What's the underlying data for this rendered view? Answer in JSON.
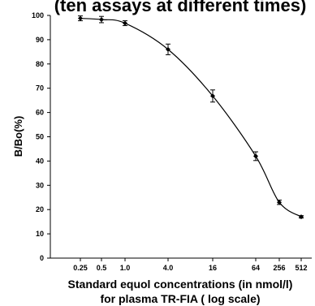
{
  "chart_data": {
    "type": "line",
    "title": "(ten assays at different times)",
    "xlabel_line1": "Standard equol concentrations  (in nmol/l)",
    "xlabel_line2": "for plasma TR-FIA ( log scale)",
    "ylabel": "B/Bo(%)",
    "ylim": [
      0,
      100
    ],
    "y_ticks": [
      0,
      10,
      20,
      30,
      40,
      50,
      60,
      70,
      80,
      90,
      100
    ],
    "x_log_scale": true,
    "x_tick_labels": [
      "0.25",
      "0.5",
      "1.0",
      "4.0",
      "16",
      "64",
      "256",
      "512"
    ],
    "x": [
      0.25,
      0.5,
      1.0,
      4.0,
      16,
      64,
      256,
      512
    ],
    "series": [
      {
        "values": [
          98.8,
          98.3,
          96.8,
          86,
          66.8,
          42,
          23,
          17
        ],
        "errors": [
          1.0,
          1.3,
          1.0,
          2.2,
          2.5,
          1.8,
          0.9,
          0.5
        ]
      }
    ],
    "grid": false,
    "color": "#000000"
  }
}
